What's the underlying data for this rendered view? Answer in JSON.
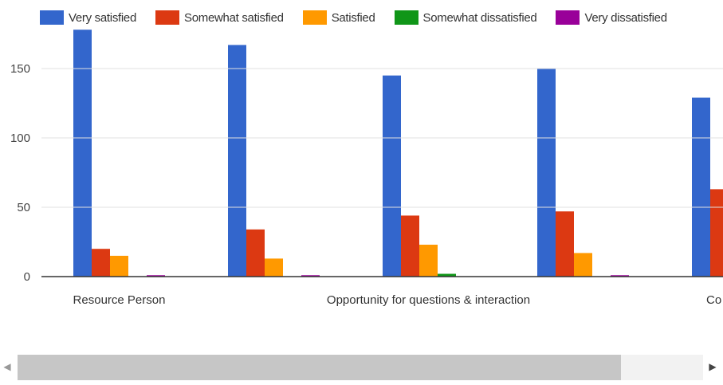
{
  "chart_data": {
    "type": "bar",
    "categories": [
      "Resource Person",
      "",
      "Opportunity for questions & interaction",
      "",
      "Co"
    ],
    "series": [
      {
        "name": "Very satisfied",
        "color": "#3366cc",
        "values": [
          178,
          167,
          145,
          150,
          129
        ]
      },
      {
        "name": "Somewhat satisfied",
        "color": "#dc3912",
        "values": [
          20,
          34,
          44,
          47,
          63
        ]
      },
      {
        "name": "Satisfied",
        "color": "#ff9900",
        "values": [
          15,
          13,
          23,
          17,
          0
        ]
      },
      {
        "name": "Somewhat dissatisfied",
        "color": "#109618",
        "values": [
          0,
          0,
          2,
          0,
          0
        ]
      },
      {
        "name": "Very dissatisfied",
        "color": "#990099",
        "values": [
          1,
          1,
          0,
          1,
          0
        ]
      }
    ],
    "yticks": [
      0,
      50,
      100,
      150
    ],
    "ylim": [
      0,
      185
    ],
    "grid": true,
    "legend": "top",
    "title": "",
    "xlabel": "",
    "ylabel": ""
  },
  "scrollbar": {
    "left_arrow": "◀",
    "right_arrow": "▶",
    "position_fraction": 0.88
  }
}
